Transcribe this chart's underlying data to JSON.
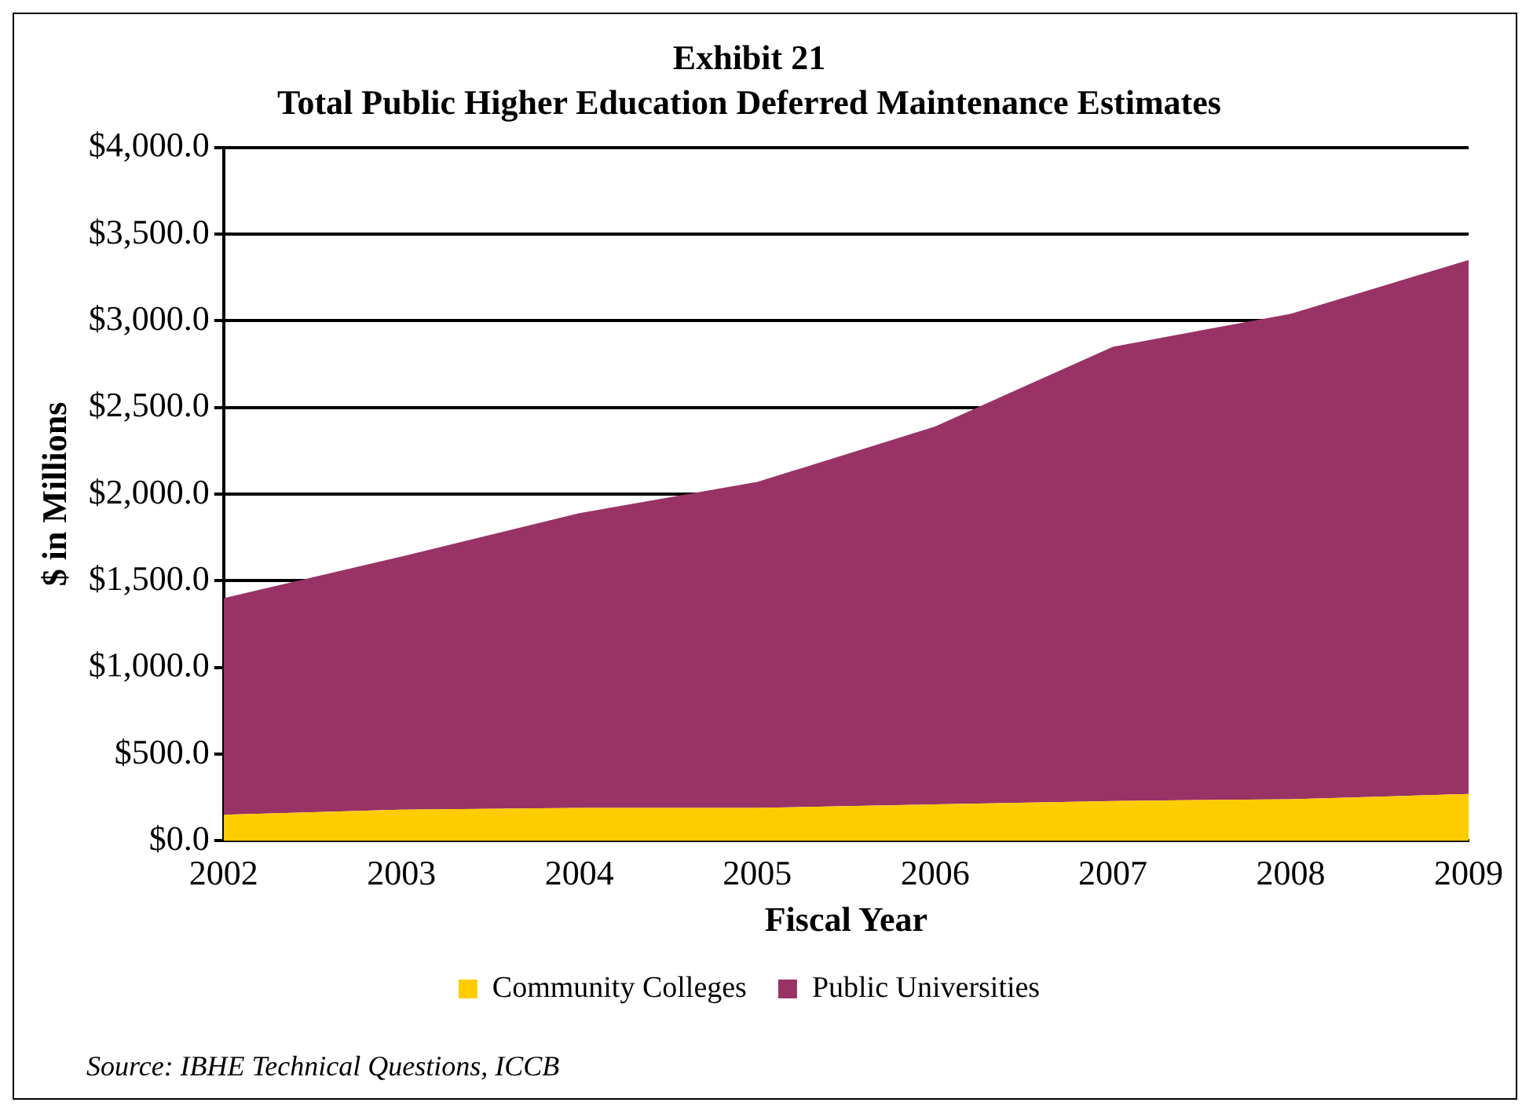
{
  "chart_data": {
    "type": "area",
    "title": "Exhibit 21",
    "subtitle": "Total Public Higher Education Deferred Maintenance Estimates",
    "xlabel": "Fiscal Year",
    "ylabel": "$ in Millions",
    "categories": [
      "2002",
      "2003",
      "2004",
      "2005",
      "2006",
      "2007",
      "2008",
      "2009"
    ],
    "stacked": true,
    "series": [
      {
        "name": "Community Colleges",
        "color": "#ffcc00",
        "values": [
          150,
          180,
          190,
          190,
          210,
          230,
          240,
          270
        ]
      },
      {
        "name": "Public Universities",
        "color": "#993366",
        "values": [
          1250,
          1460,
          1700,
          1880,
          2180,
          2620,
          2800,
          3080
        ]
      }
    ],
    "ylim": [
      0,
      4000
    ],
    "yticks": [
      {
        "value": 0,
        "label": "$0.0"
      },
      {
        "value": 500,
        "label": "$500.0"
      },
      {
        "value": 1000,
        "label": "$1,000.0"
      },
      {
        "value": 1500,
        "label": "$1,500.0"
      },
      {
        "value": 2000,
        "label": "$2,000.0"
      },
      {
        "value": 2500,
        "label": "$2,500.0"
      },
      {
        "value": 3000,
        "label": "$3,000.0"
      },
      {
        "value": 3500,
        "label": "$3,500.0"
      },
      {
        "value": 4000,
        "label": "$4,000.0"
      }
    ],
    "grid": "y",
    "legend": "bottom",
    "annotations": [
      "Source: IBHE Technical Questions, ICCB"
    ]
  }
}
